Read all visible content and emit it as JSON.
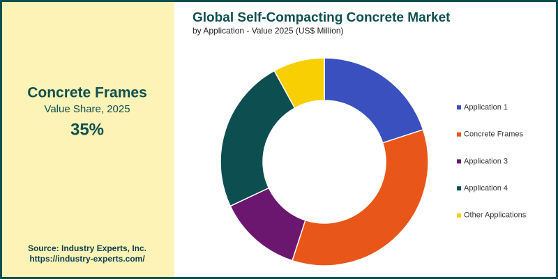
{
  "chart_data": {
    "type": "donut",
    "title": "Global Self-Compacting Concrete Market",
    "subtitle": "by Application - Value 2025 (US$ Million)",
    "categories": [
      "Application 1",
      "Concrete Frames",
      "Application 3",
      "Application 4",
      "Other Applications"
    ],
    "values": [
      20,
      35,
      13,
      24,
      8
    ],
    "colors": [
      "#3a50be",
      "#e8561a",
      "#6b176f",
      "#0d4f50",
      "#f7cf02"
    ],
    "legend": "right"
  },
  "highlight": {
    "title": "Concrete Frames",
    "subtitle": "Value Share, 2025",
    "value": 35,
    "value_label": "35%"
  },
  "source": [
    "Source: Industry Experts, Inc.",
    "https://industry-experts.com/"
  ]
}
